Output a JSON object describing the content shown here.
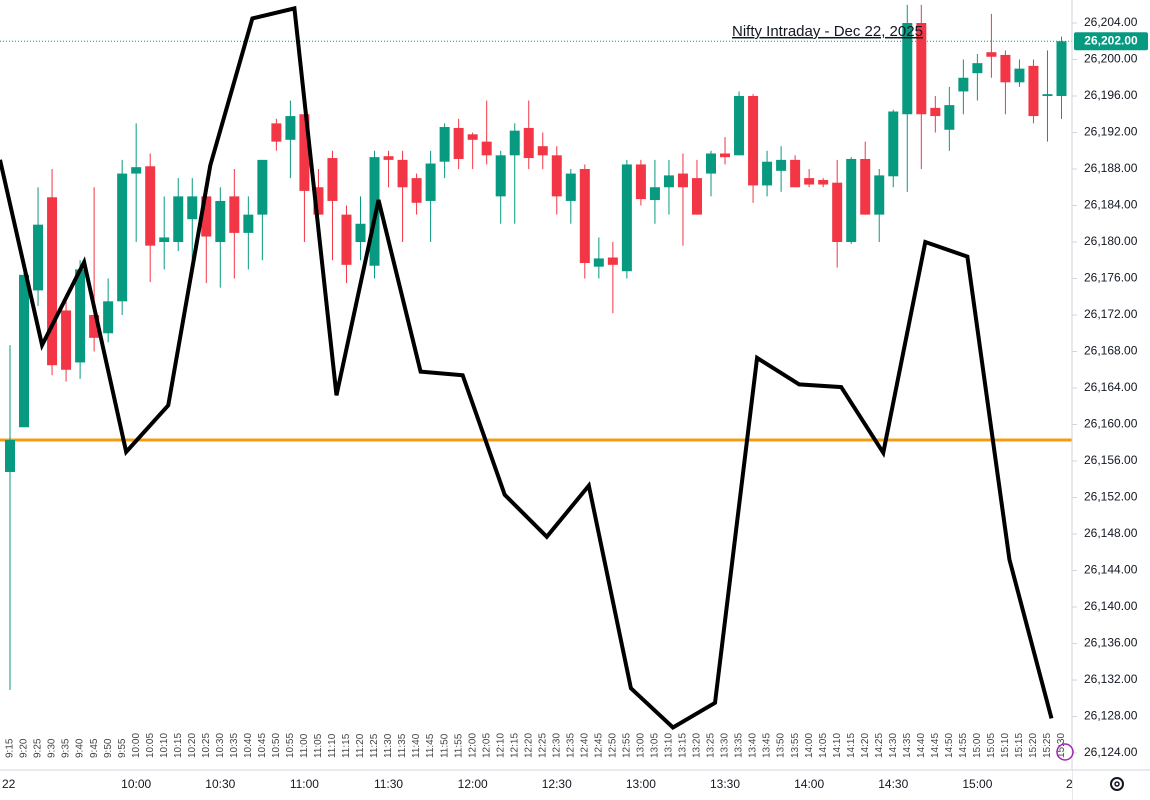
{
  "chart_data": {
    "type": "candlestick",
    "title": "Nifty Intraday - Dec 22, 2025",
    "categories": [
      "9:15",
      "9:20",
      "9:25",
      "9:30",
      "9:35",
      "9:40",
      "9:45",
      "9:50",
      "9:55",
      "10:00",
      "10:05",
      "10:10",
      "10:15",
      "10:20",
      "10:25",
      "10:30",
      "10:35",
      "10:40",
      "10:45",
      "10:50",
      "10:55",
      "11:00",
      "11:05",
      "11:10",
      "11:15",
      "11:20",
      "11:25",
      "11:30",
      "11:35",
      "11:40",
      "11:45",
      "11:50",
      "11:55",
      "12:00",
      "12:05",
      "12:10",
      "12:15",
      "12:20",
      "12:25",
      "12:30",
      "12:35",
      "12:40",
      "12:45",
      "12:50",
      "12:55",
      "13:00",
      "13:05",
      "13:10",
      "13:15",
      "13:20",
      "13:25",
      "13:30",
      "13:35",
      "13:40",
      "13:45",
      "13:50",
      "13:55",
      "14:00",
      "14:05",
      "14:10",
      "14:15",
      "14:20",
      "14:25",
      "14:30",
      "14:35",
      "14:40",
      "14:45",
      "14:50",
      "14:55",
      "15:00",
      "15:05",
      "15:10",
      "15:15",
      "15:20",
      "15:25",
      "15:30"
    ],
    "open": [
      26154.8,
      26159.7,
      26174.7,
      26184.9,
      26172.5,
      26166.8,
      26172,
      26170,
      26173.5,
      26187.5,
      26188.3,
      26180,
      26180,
      26182.5,
      26185,
      26180,
      26185,
      26181,
      26183,
      26193,
      26191.2,
      26194,
      26186,
      26189.2,
      26183,
      26180,
      26177.4,
      26189.4,
      26189,
      26187,
      26184.5,
      26188.8,
      26192.5,
      26191.8,
      26191,
      26185,
      26189.5,
      26192.5,
      26190.5,
      26189.5,
      26184.5,
      26188,
      26177.3,
      26178.3,
      26176.8,
      26188.5,
      26184.6,
      26186,
      26187.5,
      26187,
      26187.5,
      26189.7,
      26189.5,
      26196,
      26186.2,
      26187.8,
      26189,
      26187,
      26186.8,
      26186.5,
      26180,
      26189.1,
      26183,
      26187.2,
      26194,
      26204,
      26194.7,
      26192.3,
      26196.5,
      26198.5,
      26200.8,
      26200.5,
      26197.5,
      26199.3,
      26196,
      26196
    ],
    "high": [
      26168.7,
      26177,
      26186,
      26188,
      26174,
      26178,
      26186,
      26176,
      26189,
      26193,
      26189.7,
      26185,
      26187,
      26187,
      26187,
      26186,
      26188,
      26185,
      26189,
      26193.5,
      26195.5,
      26195,
      26188,
      26190,
      26184,
      26185,
      26190,
      26190,
      26190,
      26187.5,
      26190,
      26193,
      26193.5,
      26192,
      26195.5,
      26190,
      26193,
      26195.5,
      26192,
      26190.5,
      26188,
      26188.5,
      26180.5,
      26180,
      26189,
      26189,
      26189,
      26189,
      26189.7,
      26189,
      26190,
      26191.5,
      26196.5,
      26196.2,
      26190,
      26190.5,
      26189.5,
      26188,
      26187,
      26189,
      26189.3,
      26191,
      26188,
      26194.5,
      26206,
      26206,
      26196,
      26197,
      26200,
      26200.6,
      26205,
      26201,
      26200,
      26200,
      26201,
      26202.5
    ],
    "low": [
      26130.9,
      26159.7,
      26173,
      26165.4,
      26164.7,
      26165,
      26168,
      26169,
      26172,
      26180,
      26175.6,
      26177,
      26179,
      26176.5,
      26175.5,
      26175,
      26176,
      26177,
      26178,
      26190,
      26187,
      26180,
      26180,
      26178,
      26175.5,
      26178,
      26176,
      26186,
      26180,
      26183,
      26180,
      26187,
      26188,
      26188,
      26188.5,
      26182,
      26182,
      26188,
      26188,
      26183,
      26182,
      26176,
      26176,
      26172.2,
      26176,
      26184,
      26182,
      26183,
      26179.6,
      26183,
      26185,
      26188.5,
      26189.5,
      26184.3,
      26185,
      26185.5,
      26186,
      26186,
      26186,
      26177.2,
      26179.8,
      26183,
      26180,
      26186,
      26185.5,
      26188,
      26192,
      26190,
      26194,
      26195.5,
      26198,
      26194,
      26197,
      26193,
      26191,
      26193.5
    ],
    "close": [
      26158.3,
      26176.4,
      26181.9,
      26166.5,
      26166,
      26177,
      26169.5,
      26173.5,
      26187.5,
      26188.2,
      26179.6,
      26180.5,
      26185,
      26185,
      26180.6,
      26184.5,
      26181,
      26183,
      26189,
      26191,
      26193.8,
      26185.6,
      26183,
      26184.5,
      26177.5,
      26182,
      26189.3,
      26189,
      26186,
      26184.3,
      26188.6,
      26192.6,
      26189.1,
      26191.2,
      26189.5,
      26189.5,
      26192.2,
      26189.2,
      26189.5,
      26185,
      26187.5,
      26177.7,
      26178.2,
      26177.5,
      26188.5,
      26184.7,
      26186,
      26187.3,
      26186,
      26183,
      26189.7,
      26189.3,
      26196,
      26186.2,
      26188.8,
      26189,
      26186,
      26186.3,
      26186.3,
      26180,
      26189.1,
      26183,
      26187.3,
      26194.3,
      26204,
      26194,
      26193.8,
      26195,
      26198,
      26199.6,
      26200.3,
      26197.5,
      26199,
      26193.8,
      26196.2,
      26202
    ],
    "up_color": "#089981",
    "down_color": "#f23645",
    "overlay": {
      "color": "#000000",
      "x": [
        "9:15",
        "9:30",
        "9:45",
        "10:00",
        "10:15",
        "10:30",
        "10:45",
        "11:00",
        "11:15",
        "11:30",
        "11:45",
        "12:00",
        "12:15",
        "12:30",
        "12:45",
        "13:00",
        "13:15",
        "13:30",
        "13:45",
        "14:00",
        "14:15",
        "14:30",
        "14:45",
        "15:00",
        "15:15",
        "15:30"
      ],
      "values": [
        26189.0,
        26168.7,
        26177.8,
        26157.0,
        26162.1,
        26188.4,
        26204.5,
        26205.6,
        26163.2,
        26184.6,
        26165.8,
        26165.4,
        26152.3,
        26147.7,
        26153.3,
        26131.1,
        26126.8,
        26129.5,
        26167.3,
        26164.4,
        26164.1,
        26156.9,
        26180.0,
        26178.4,
        26145.2,
        26127.8
      ]
    },
    "reference_line": {
      "value": 26158.3,
      "color": "#f39c12"
    },
    "last_price": {
      "value": 26202,
      "label": "26,202.00",
      "color": "#089981"
    },
    "ylim": [
      26122.14,
      26206.52
    ],
    "yticks": [
      {
        "value": 26124,
        "label": "26,124.00"
      },
      {
        "value": 26128,
        "label": "26,128.00"
      },
      {
        "value": 26132,
        "label": "26,132.00"
      },
      {
        "value": 26136,
        "label": "26,136.00"
      },
      {
        "value": 26140,
        "label": "26,140.00"
      },
      {
        "value": 26144,
        "label": "26,144.00"
      },
      {
        "value": 26148,
        "label": "26,148.00"
      },
      {
        "value": 26152,
        "label": "26,152.00"
      },
      {
        "value": 26156,
        "label": "26,156.00"
      },
      {
        "value": 26160,
        "label": "26,160.00"
      },
      {
        "value": 26164,
        "label": "26,164.00"
      },
      {
        "value": 26168,
        "label": "26,168.00"
      },
      {
        "value": 26172,
        "label": "26,172.00"
      },
      {
        "value": 26176,
        "label": "26,176.00"
      },
      {
        "value": 26180,
        "label": "26,180.00"
      },
      {
        "value": 26184,
        "label": "26,184.00"
      },
      {
        "value": 26188,
        "label": "26,188.00"
      },
      {
        "value": 26192,
        "label": "26,192.00"
      },
      {
        "value": 26196,
        "label": "26,196.00"
      },
      {
        "value": 26200,
        "label": "26,200.00"
      },
      {
        "value": 26204,
        "label": "26,204.00"
      }
    ],
    "time_axis_labels": [
      "22",
      "10:00",
      "10:30",
      "11:00",
      "11:30",
      "12:00",
      "12:30",
      "13:00",
      "13:30",
      "14:00",
      "14:30",
      "15:00",
      "2"
    ]
  }
}
